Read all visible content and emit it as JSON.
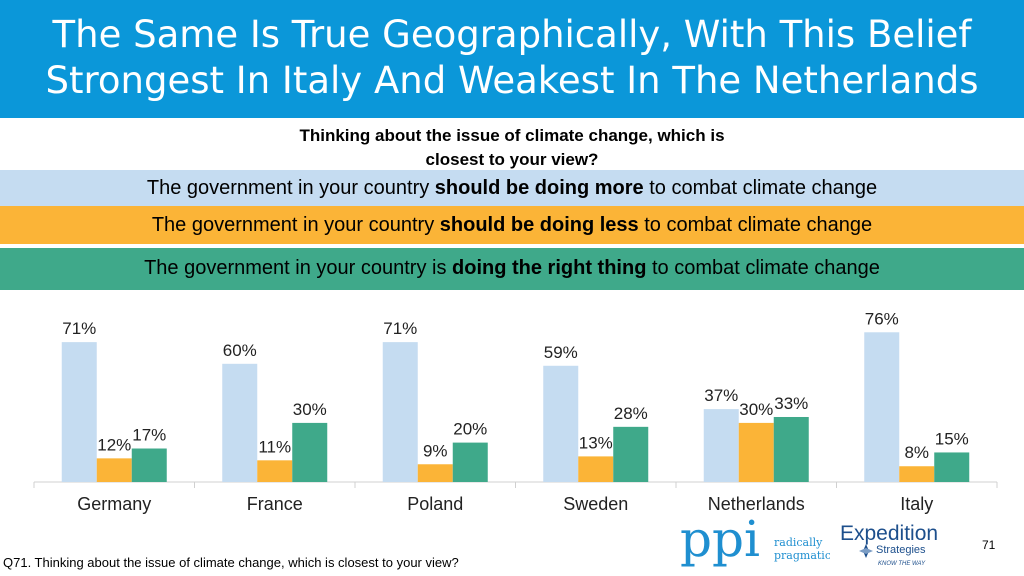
{
  "title_line1": "The Same Is True Geographically, With This Belief",
  "title_line2": "Strongest In Italy And Weakest In The Netherlands",
  "question_line1": "Thinking about the issue of climate change, which is",
  "question_line2": "closest to your view?",
  "legend": {
    "more": {
      "pre": "The government in your country ",
      "bold": "should be doing more",
      "post": " to combat climate change"
    },
    "less": {
      "pre": "The government in your country ",
      "bold": "should be doing less",
      "post": " to combat climate change"
    },
    "right": {
      "pre": "The government in your country is ",
      "bold": "doing the right thing",
      "post": " to combat climate change"
    }
  },
  "colors": {
    "header": "#0b97d9",
    "more": "#c5dcf1",
    "less": "#fbb437",
    "right": "#3fa98a"
  },
  "chart_data": {
    "type": "bar",
    "categories": [
      "Germany",
      "France",
      "Poland",
      "Sweden",
      "Netherlands",
      "Italy"
    ],
    "series": [
      {
        "key": "more",
        "values": [
          71,
          60,
          71,
          59,
          37,
          76
        ],
        "labels": [
          "71%",
          "60%",
          "71%",
          "59%",
          "37%",
          "76%"
        ]
      },
      {
        "key": "less",
        "values": [
          12,
          11,
          9,
          13,
          30,
          8
        ],
        "labels": [
          "12%",
          "11%",
          "9%",
          "13%",
          "30%",
          "8%"
        ]
      },
      {
        "key": "right",
        "values": [
          17,
          30,
          20,
          28,
          33,
          15
        ],
        "labels": [
          "17%",
          "30%",
          "20%",
          "28%",
          "33%",
          "15%"
        ]
      }
    ],
    "ylim": [
      0,
      80
    ],
    "grid": false,
    "legend": "top"
  },
  "footnote": "Q71. Thinking about the issue of climate change, which is closest to your view?",
  "page_number": "71",
  "logos": {
    "ppi_mark": "ppi",
    "ppi_tag1": "radically",
    "ppi_tag2": "pragmatic",
    "exp_name1": "Expedition",
    "exp_name2": "Strategies",
    "exp_tag": "KNOW THE WAY"
  }
}
